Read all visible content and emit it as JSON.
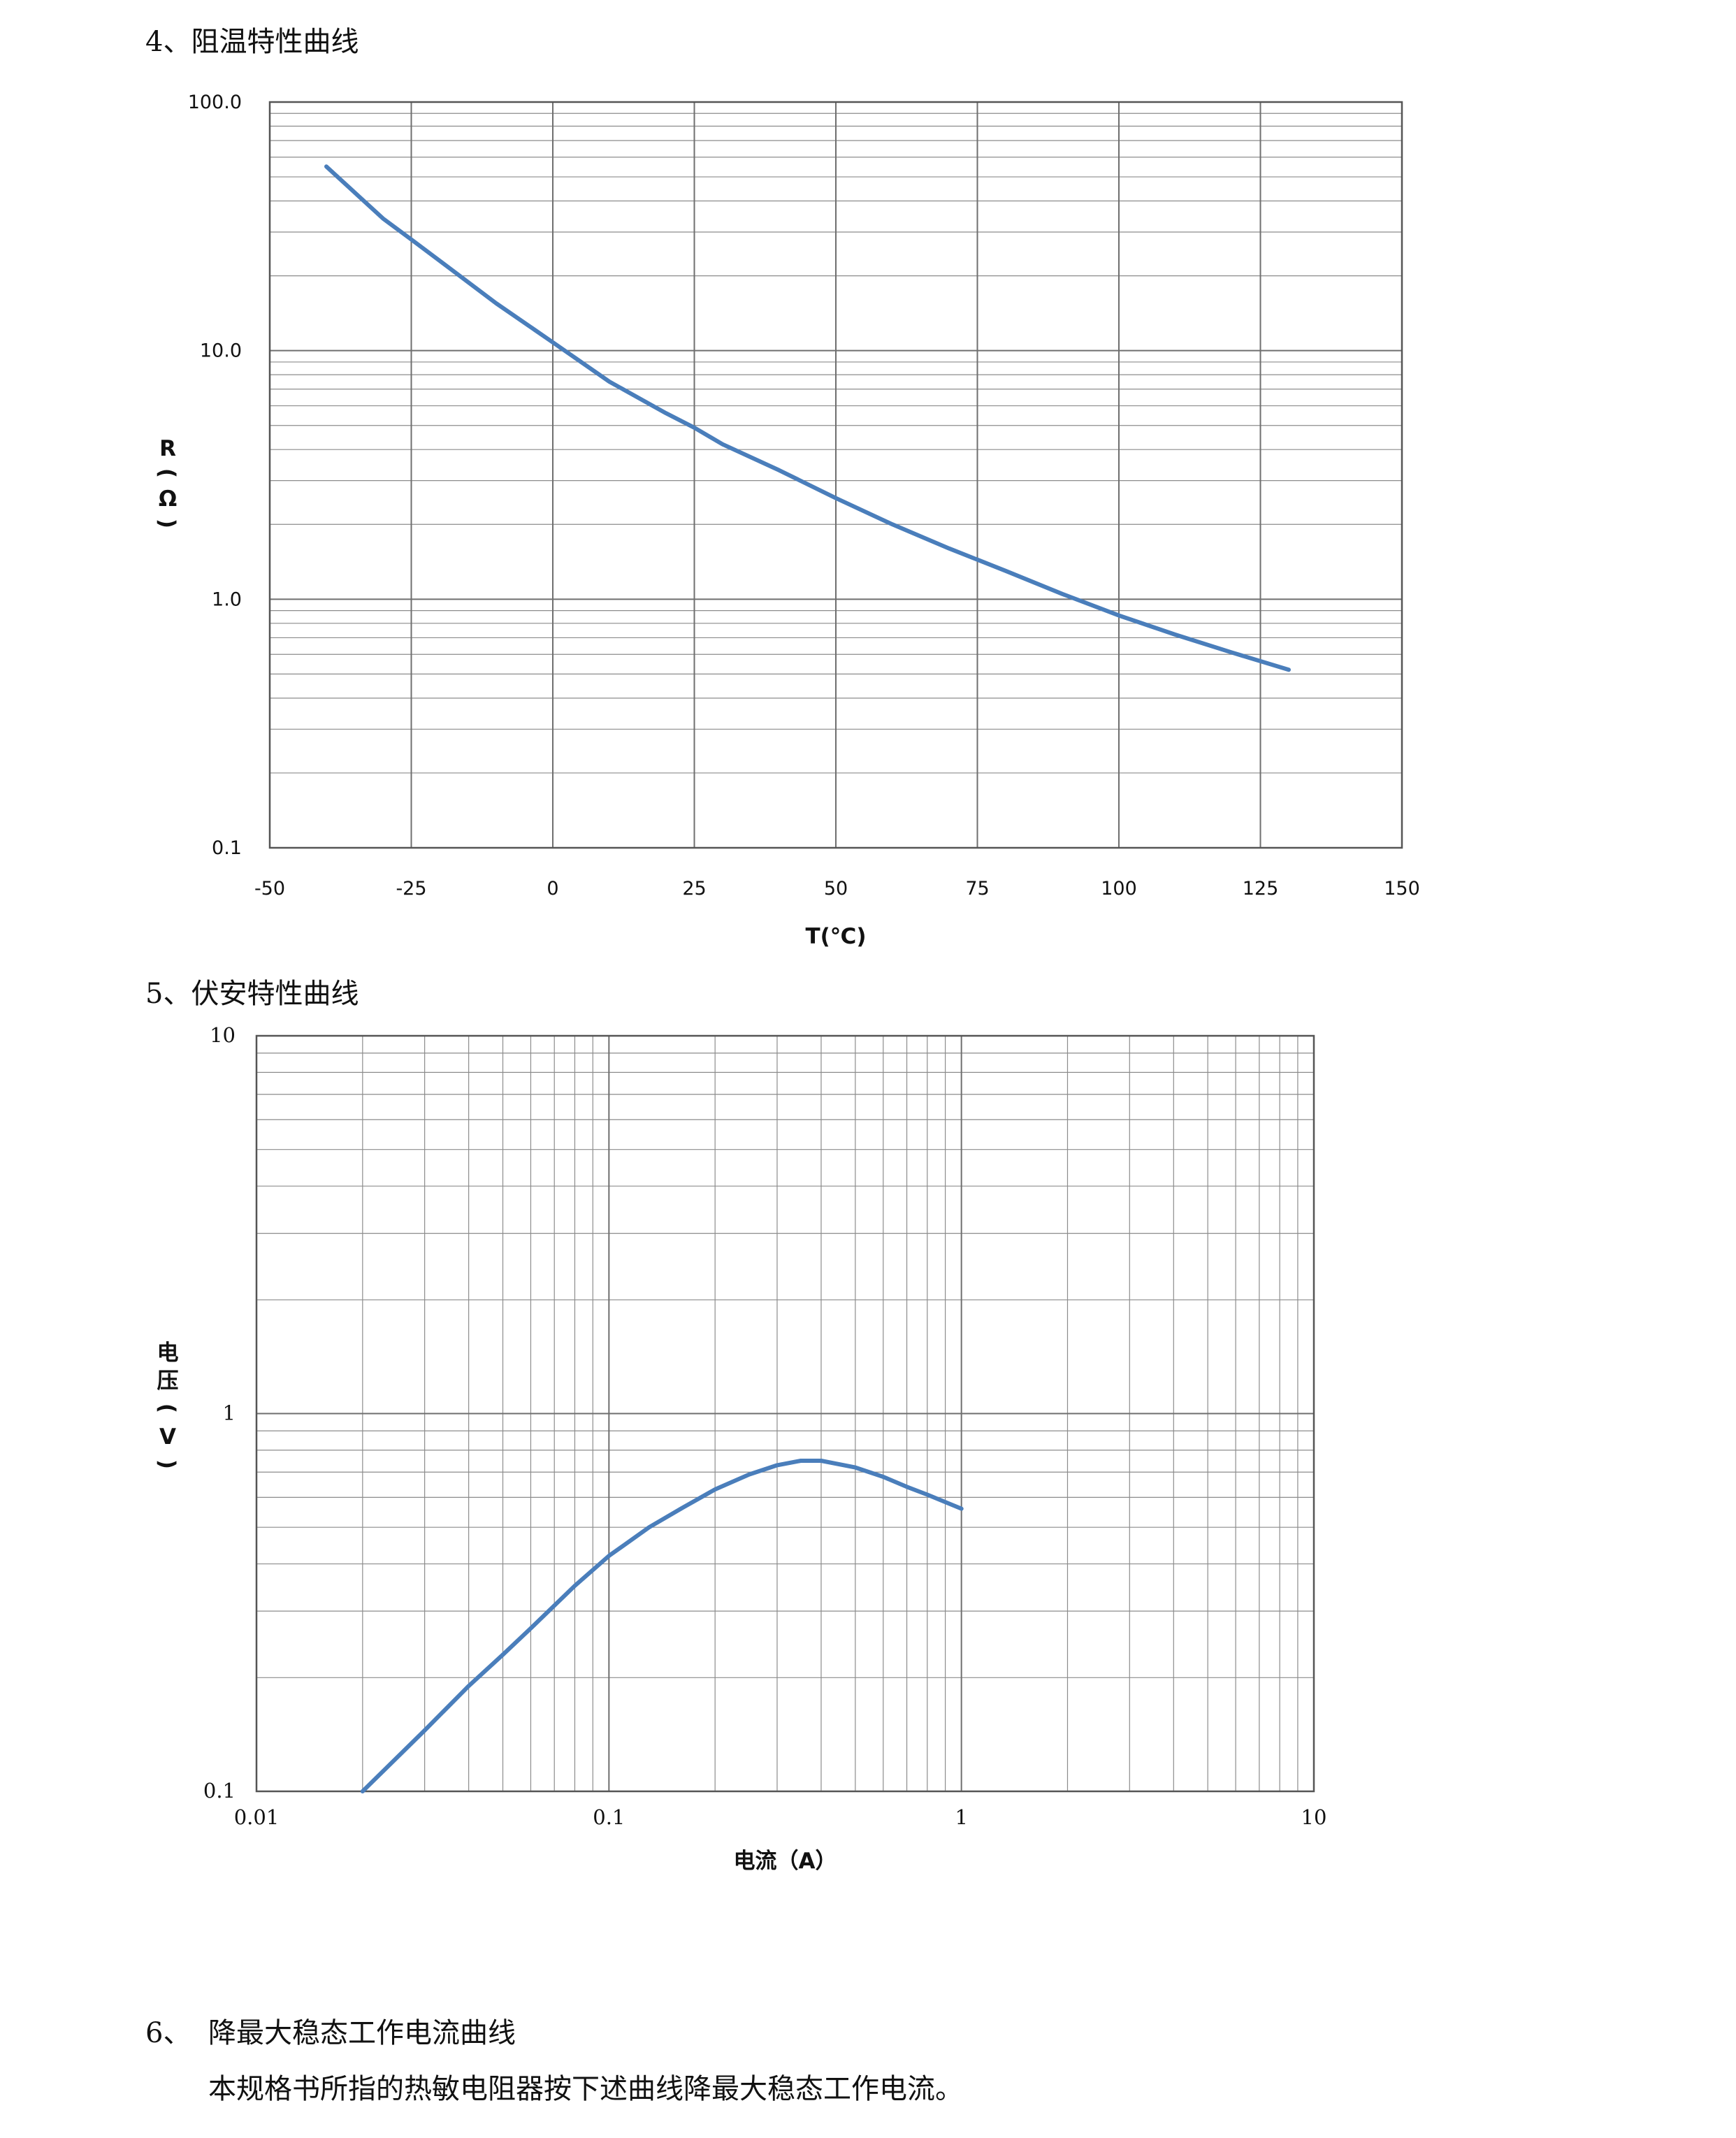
{
  "sections": {
    "s4": {
      "heading": "4、阻温特性曲线"
    },
    "s5": {
      "heading": "5、伏安特性曲线"
    },
    "s6": {
      "number": "6、",
      "heading": "降最大稳态工作电流曲线",
      "paragraph": "本规格书所指的热敏电阻器按下述曲线降最大稳态工作电流。"
    }
  },
  "colors": {
    "series": "#4a7ebb",
    "grid": "#8c8c8c",
    "frame": "#555555"
  },
  "chart_data": [
    {
      "type": "line",
      "x_scale": "linear",
      "y_scale": "log",
      "xlim": [
        -50,
        150
      ],
      "ylim": [
        0.1,
        100
      ],
      "x_ticks": [
        "-50",
        "-25",
        "0",
        "25",
        "50",
        "75",
        "100",
        "125",
        "150"
      ],
      "y_ticks": [
        "0.1",
        "1.0",
        "10.0",
        "100.0"
      ],
      "xlabel": "T(℃)",
      "ylabel_chars": [
        "R",
        "(",
        "Ω",
        ")"
      ],
      "grid": true,
      "series": [
        {
          "x": [
            -40,
            -30,
            -25,
            -20,
            -10,
            0,
            10,
            20,
            25,
            30,
            40,
            50,
            60,
            70,
            80,
            90,
            100,
            110,
            120,
            130
          ],
          "y": [
            55,
            34,
            28,
            23,
            15.5,
            10.8,
            7.5,
            5.6,
            4.9,
            4.2,
            3.3,
            2.55,
            2.0,
            1.6,
            1.3,
            1.05,
            0.86,
            0.72,
            0.61,
            0.52
          ]
        }
      ]
    },
    {
      "type": "line",
      "x_scale": "log",
      "y_scale": "log",
      "xlim": [
        0.01,
        10
      ],
      "ylim": [
        0.1,
        10
      ],
      "x_ticks": [
        "0.01",
        "0.1",
        "1",
        "10"
      ],
      "y_ticks": [
        "0.1",
        "1",
        "10"
      ],
      "xlabel": "电流（A）",
      "ylabel_chars": [
        "电",
        "压",
        "(",
        "V",
        ")"
      ],
      "grid": true,
      "series": [
        {
          "x": [
            0.02,
            0.03,
            0.04,
            0.05,
            0.06,
            0.08,
            0.1,
            0.13,
            0.16,
            0.2,
            0.25,
            0.3,
            0.35,
            0.4,
            0.5,
            0.6,
            0.7,
            0.8,
            1.0
          ],
          "y": [
            0.1,
            0.145,
            0.19,
            0.23,
            0.27,
            0.35,
            0.42,
            0.5,
            0.56,
            0.63,
            0.69,
            0.73,
            0.75,
            0.75,
            0.72,
            0.68,
            0.64,
            0.61,
            0.56
          ]
        }
      ]
    }
  ]
}
